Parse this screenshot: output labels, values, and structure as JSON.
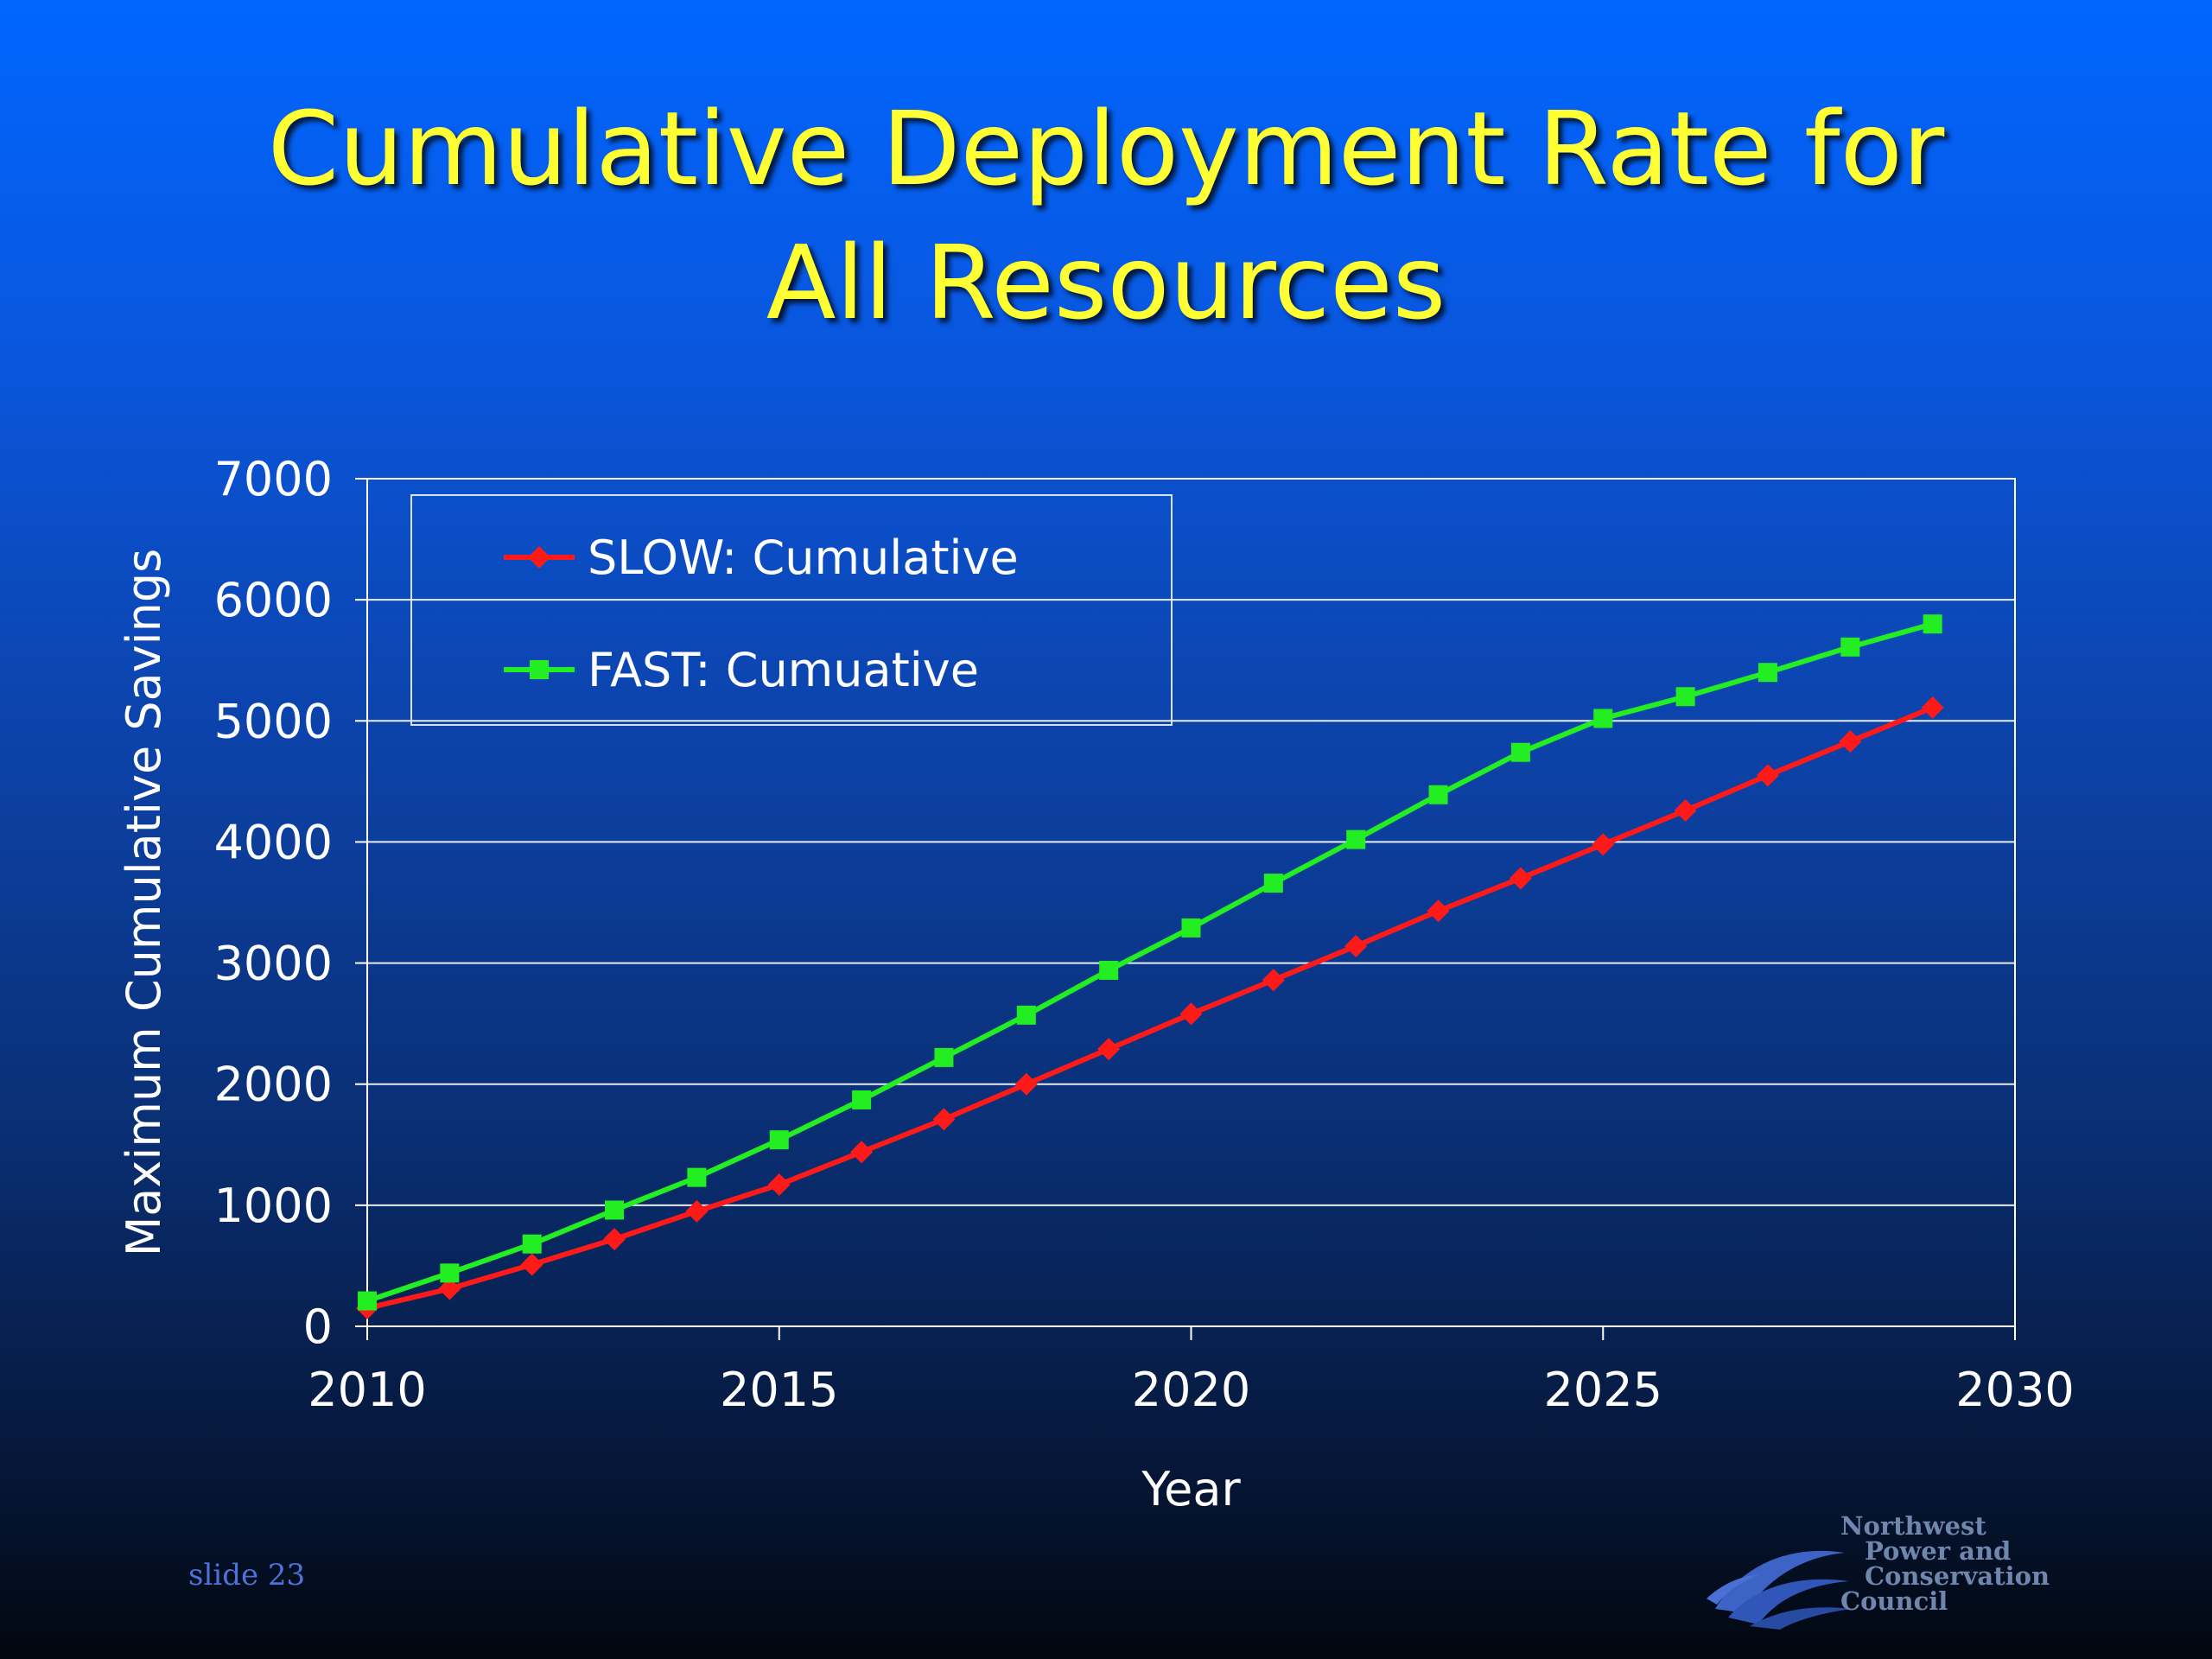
{
  "slide": {
    "title_line1": "Cumulative Deployment Rate for",
    "title_line2": "All Resources",
    "slide_number": "slide 23",
    "logo": {
      "line1": "Northwest",
      "line2": "Power and",
      "line3": "Conservation",
      "line4": "Council",
      "icon": "wave-logo-icon"
    }
  },
  "chart_data": {
    "type": "line",
    "title": "",
    "xlabel": "Year",
    "ylabel": "Maximum Cumulative Savings",
    "xlim": [
      2010,
      2030
    ],
    "ylim": [
      0,
      7000
    ],
    "x_ticks": [
      2010,
      2015,
      2020,
      2025,
      2030
    ],
    "y_ticks": [
      0,
      1000,
      2000,
      3000,
      4000,
      5000,
      6000,
      7000
    ],
    "grid": "horizontal",
    "legend_position": "top-left",
    "x": [
      2010,
      2011,
      2012,
      2013,
      2014,
      2015,
      2016,
      2017,
      2018,
      2019,
      2020,
      2021,
      2022,
      2023,
      2024,
      2025,
      2026,
      2027,
      2028,
      2029
    ],
    "series": [
      {
        "name": "SLOW: Cumulative",
        "color": "#ff1a1a",
        "marker": "diamond",
        "values": [
          150,
          310,
          510,
          720,
          950,
          1170,
          1440,
          1710,
          2000,
          2290,
          2580,
          2860,
          3140,
          3430,
          3700,
          3980,
          4260,
          4550,
          4830,
          5110
        ]
      },
      {
        "name": "FAST: Cumuative",
        "color": "#22ee22",
        "marker": "square",
        "values": [
          210,
          440,
          680,
          960,
          1230,
          1540,
          1870,
          2220,
          2570,
          2940,
          3290,
          3660,
          4020,
          4390,
          4740,
          5020,
          5200,
          5400,
          5610,
          5800
        ]
      }
    ]
  }
}
